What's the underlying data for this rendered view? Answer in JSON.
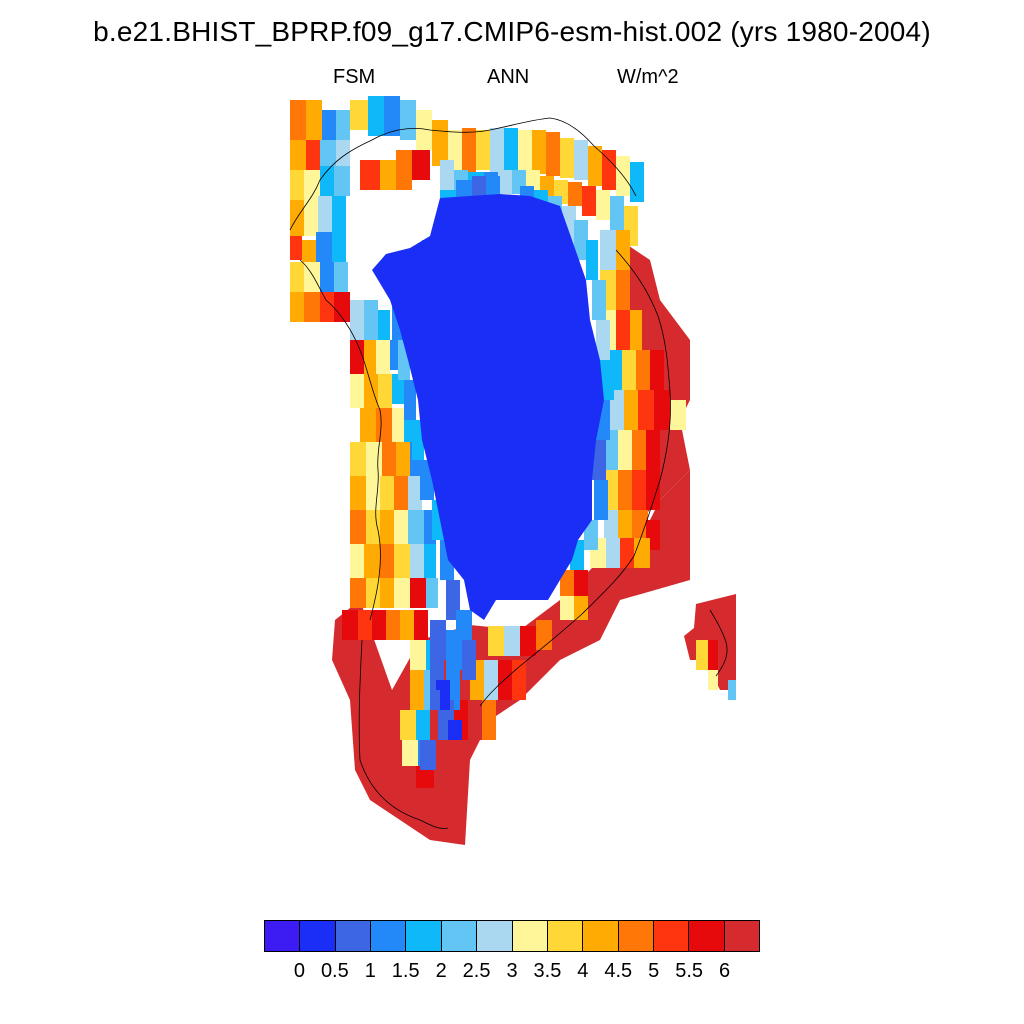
{
  "title": "b.e21.BHIST_BPRP.f09_g17.CMIP6-esm-hist.002 (yrs 1980-2004)",
  "subtitles": {
    "left": "FSM",
    "center": "ANN",
    "right": "W/m^2"
  },
  "map": {
    "region": "Greenland",
    "variable": "FSM",
    "units": "W/m^2",
    "coastline_color": "#000000"
  },
  "colorbar": {
    "colors": [
      "#3d1cf3",
      "#1a2ef5",
      "#3c66e4",
      "#2389f8",
      "#0fb8f8",
      "#63c5f3",
      "#aad8f0",
      "#fff69a",
      "#ffd736",
      "#ffab03",
      "#ff7707",
      "#ff3510",
      "#e60a0c",
      "#d52b2e"
    ],
    "ticks": [
      "0",
      "0.5",
      "1",
      "1.5",
      "2",
      "2.5",
      "3",
      "3.5",
      "4",
      "4.5",
      "5",
      "5.5",
      "6"
    ]
  }
}
